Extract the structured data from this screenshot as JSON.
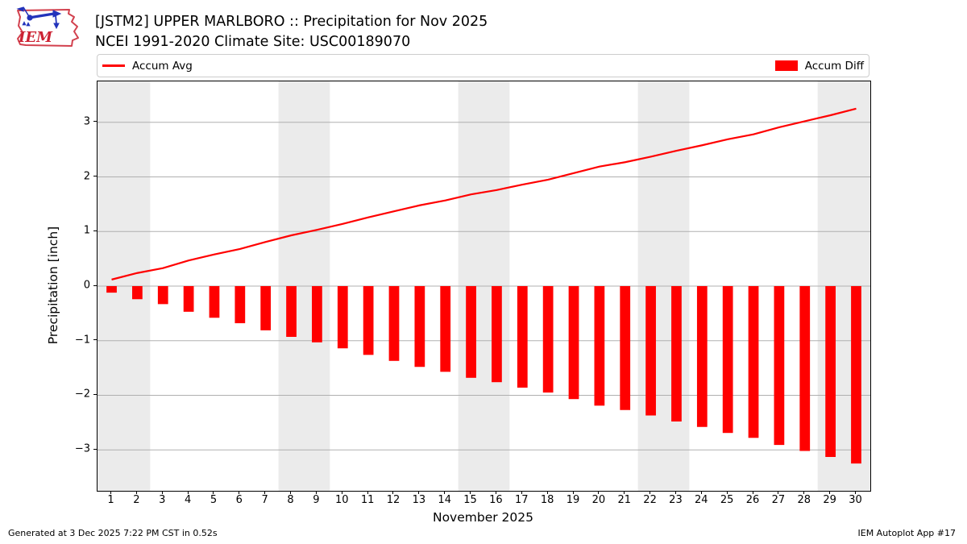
{
  "header": {
    "title_line1": "[JSTM2] UPPER MARLBORO :: Precipitation for Nov 2025",
    "title_line2": "NCEI 1991-2020 Climate Site: USC00189070",
    "logo_text": "IEM"
  },
  "legend": {
    "items": [
      {
        "label": "Accum Avg",
        "swatch": "line",
        "color": "#ff0000"
      },
      {
        "label": "Accum Diff",
        "swatch": "patch",
        "color": "#ff0000"
      }
    ]
  },
  "footer": {
    "left": "Generated at 3 Dec 2025 7:22 PM CST in 0.52s",
    "right": "IEM Autoplot App #17"
  },
  "chart_data": {
    "type": "bar",
    "title": "[JSTM2] UPPER MARLBORO :: Precipitation for Nov 2025",
    "subtitle": "NCEI 1991-2020 Climate Site: USC00189070",
    "xlabel": "November 2025",
    "ylabel": "Precipitation [inch]",
    "x": [
      1,
      2,
      3,
      4,
      5,
      6,
      7,
      8,
      9,
      10,
      11,
      12,
      13,
      14,
      15,
      16,
      17,
      18,
      19,
      20,
      21,
      22,
      23,
      24,
      25,
      26,
      27,
      28,
      29,
      30
    ],
    "series": [
      {
        "name": "Accum Avg",
        "type": "line",
        "color": "#ff0000",
        "values": [
          0.12,
          0.24,
          0.33,
          0.47,
          0.58,
          0.68,
          0.81,
          0.93,
          1.03,
          1.14,
          1.26,
          1.37,
          1.48,
          1.57,
          1.68,
          1.76,
          1.86,
          1.95,
          2.07,
          2.19,
          2.27,
          2.37,
          2.48,
          2.58,
          2.69,
          2.78,
          2.91,
          3.02,
          3.13,
          3.25
        ]
      },
      {
        "name": "Accum Diff",
        "type": "bar",
        "color": "#ff0000",
        "values": [
          -0.12,
          -0.24,
          -0.33,
          -0.47,
          -0.58,
          -0.68,
          -0.81,
          -0.93,
          -1.03,
          -1.14,
          -1.26,
          -1.37,
          -1.48,
          -1.57,
          -1.68,
          -1.76,
          -1.86,
          -1.95,
          -2.07,
          -2.19,
          -2.27,
          -2.37,
          -2.48,
          -2.58,
          -2.69,
          -2.78,
          -2.91,
          -3.02,
          -3.13,
          -3.25
        ]
      }
    ],
    "xlim": [
      0.45,
      30.55
    ],
    "ylim": [
      -3.75,
      3.75
    ],
    "yticks": [
      -3,
      -2,
      -1,
      0,
      1,
      2,
      3
    ],
    "yticklabels": [
      "−3",
      "−2",
      "−1",
      "0",
      "1",
      "2",
      "3"
    ],
    "grid": true,
    "bar_width": 0.4,
    "weekend_bands": [
      [
        0.45,
        2.5
      ],
      [
        7.5,
        9.5
      ],
      [
        14.5,
        16.5
      ],
      [
        21.5,
        23.5
      ],
      [
        28.5,
        30.55
      ]
    ],
    "band_color": "#ebebeb",
    "grid_color": "#b0b0b0",
    "legend_position": "top"
  }
}
